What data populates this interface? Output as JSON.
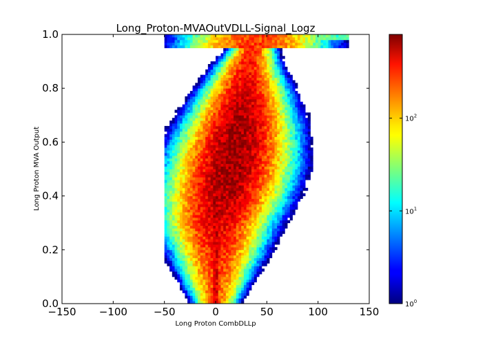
{
  "chart_data": {
    "type": "heatmap",
    "title": "Long_Proton-MVAOutVDLL-Signal_Logz",
    "xlabel": "Long Proton CombDLLp",
    "ylabel": "Long Proton MVA Output",
    "xlim": [
      -150,
      150
    ],
    "ylim": [
      0.0,
      1.0
    ],
    "x_ticks": [
      "−150",
      "−100",
      "−50",
      "0",
      "50",
      "100",
      "150"
    ],
    "x_tick_values": [
      -150,
      -100,
      -50,
      0,
      50,
      100,
      150
    ],
    "y_ticks": [
      "0.0",
      "0.2",
      "0.4",
      "0.6",
      "0.8",
      "1.0"
    ],
    "y_tick_values": [
      0.0,
      0.2,
      0.4,
      0.6,
      0.8,
      1.0
    ],
    "colorscale": "jet",
    "color_scale_type": "log",
    "color_range": [
      1,
      800
    ],
    "colorbar_ticks": [
      {
        "base": "10",
        "exp": "0",
        "value": 1
      },
      {
        "base": "10",
        "exp": "1",
        "value": 10
      },
      {
        "base": "10",
        "exp": "2",
        "value": 100
      }
    ],
    "bins": {
      "x_min": -50,
      "x_max": 130,
      "x_width": 2.5,
      "y_min": 0.0,
      "y_max": 1.0,
      "y_count": 100
    },
    "ridge": [
      {
        "y": 0.0,
        "x": 0
      },
      {
        "y": 0.3,
        "x": 2
      },
      {
        "y": 0.5,
        "x": 15
      },
      {
        "y": 0.7,
        "x": 25
      },
      {
        "y": 0.9,
        "x": 32
      },
      {
        "y": 0.98,
        "x": 40
      }
    ],
    "peak_count": 700,
    "legend": "colorbar-right",
    "grid": false
  }
}
